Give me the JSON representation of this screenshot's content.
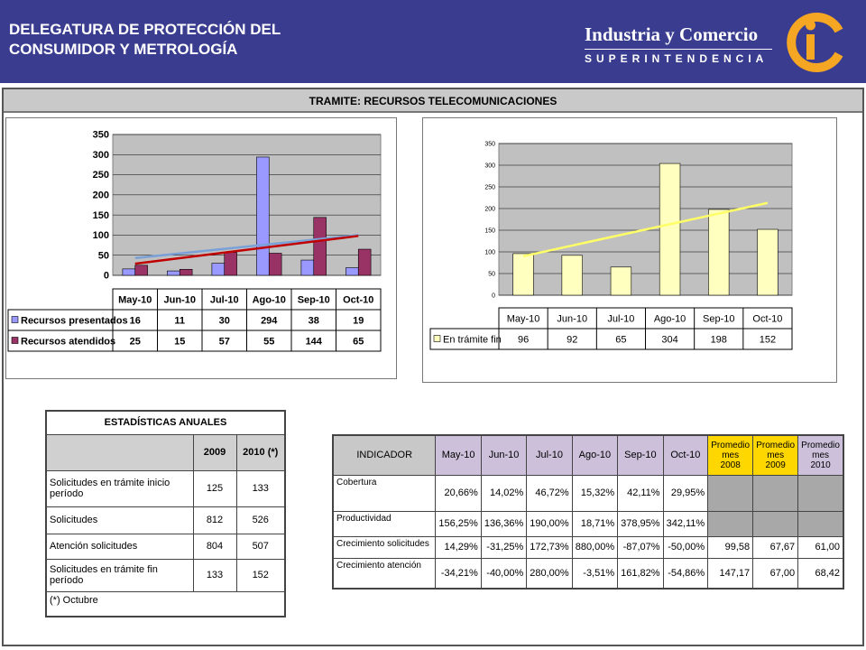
{
  "header": {
    "title_line1": "DELEGATURA DE PROTECCIÓN DEL",
    "title_line2": "CONSUMIDOR Y METROLOGÍA",
    "brand_name": "Industria y Comercio",
    "brand_sub": "SUPERINTENDENCIA",
    "logo_text": "ic"
  },
  "main_title": "TRAMITE: RECURSOS TELECOMUNICACIONES",
  "chart_data": [
    {
      "type": "bar",
      "categories": [
        "May-10",
        "Jun-10",
        "Jul-10",
        "Ago-10",
        "Sep-10",
        "Oct-10"
      ],
      "series": [
        {
          "name": "Recursos presentados",
          "values": [
            16,
            11,
            30,
            294,
            38,
            19
          ],
          "color": "#9999ff"
        },
        {
          "name": "Recursos atendidos",
          "values": [
            25,
            15,
            57,
            55,
            144,
            65
          ],
          "color": "#993366"
        }
      ],
      "trendlines": [
        {
          "series": "Recursos presentados",
          "color": "#7aa0d8",
          "start": 43,
          "end": 100
        },
        {
          "series": "Recursos atendidos",
          "color": "#c00000",
          "start": 29,
          "end": 98
        }
      ],
      "ylim": [
        0,
        350
      ],
      "yticks": [
        "0",
        "50",
        "100",
        "150",
        "200",
        "250",
        "300",
        "350"
      ],
      "grid": true,
      "legend": "data-table"
    },
    {
      "type": "bar",
      "categories": [
        "May-10",
        "Jun-10",
        "Jul-10",
        "Ago-10",
        "Sep-10",
        "Oct-10"
      ],
      "series": [
        {
          "name": "En trámite fin",
          "values": [
            96,
            92,
            65,
            304,
            198,
            152
          ],
          "color": "#ffffc0"
        }
      ],
      "trendlines": [
        {
          "series": "En trámite fin",
          "color": "#ffff66",
          "start": 90,
          "end": 213
        }
      ],
      "ylim": [
        0,
        350
      ],
      "yticks": [
        "0",
        "50",
        "100",
        "150",
        "200",
        "250",
        "300",
        "350"
      ],
      "grid": true,
      "legend": "data-table"
    }
  ],
  "annual": {
    "title": "ESTADÍSTICAS ANUALES",
    "col1": "2009",
    "col2": "2010 (*)",
    "rows": [
      {
        "label": "Solicitudes en trámite inicio período",
        "v2009": "125",
        "v2010": "133"
      },
      {
        "label": "Solicitudes",
        "v2009": "812",
        "v2010": "526"
      },
      {
        "label": "Atención solicitudes",
        "v2009": "804",
        "v2010": "507"
      },
      {
        "label": "Solicitudes en trámite fin período",
        "v2009": "133",
        "v2010": "152"
      }
    ],
    "footnote": "(*) Octubre"
  },
  "indicators": {
    "header": [
      "INDICADOR",
      "May-10",
      "Jun-10",
      "Jul-10",
      "Ago-10",
      "Sep-10",
      "Oct-10",
      "Promedio mes 2008",
      "Promedio mes 2009",
      "Promedio mes 2010"
    ],
    "rows": [
      {
        "label": "Cobertura",
        "values": [
          "20,66%",
          "14,02%",
          "46,72%",
          "15,32%",
          "42,11%",
          "29,95%",
          "",
          "",
          ""
        ]
      },
      {
        "label": "Productividad",
        "values": [
          "156,25%",
          "136,36%",
          "190,00%",
          "18,71%",
          "378,95%",
          "342,11%",
          "",
          "",
          ""
        ]
      },
      {
        "label": "Crecimiento solicitudes",
        "values": [
          "14,29%",
          "-31,25%",
          "172,73%",
          "880,00%",
          "-87,07%",
          "-50,00%",
          "99,58",
          "67,67",
          "61,00"
        ]
      },
      {
        "label": "Crecimiento atención",
        "values": [
          "-34,21%",
          "-40,00%",
          "280,00%",
          "-3,51%",
          "161,82%",
          "-54,86%",
          "147,17",
          "67,00",
          "68,42"
        ]
      }
    ]
  }
}
